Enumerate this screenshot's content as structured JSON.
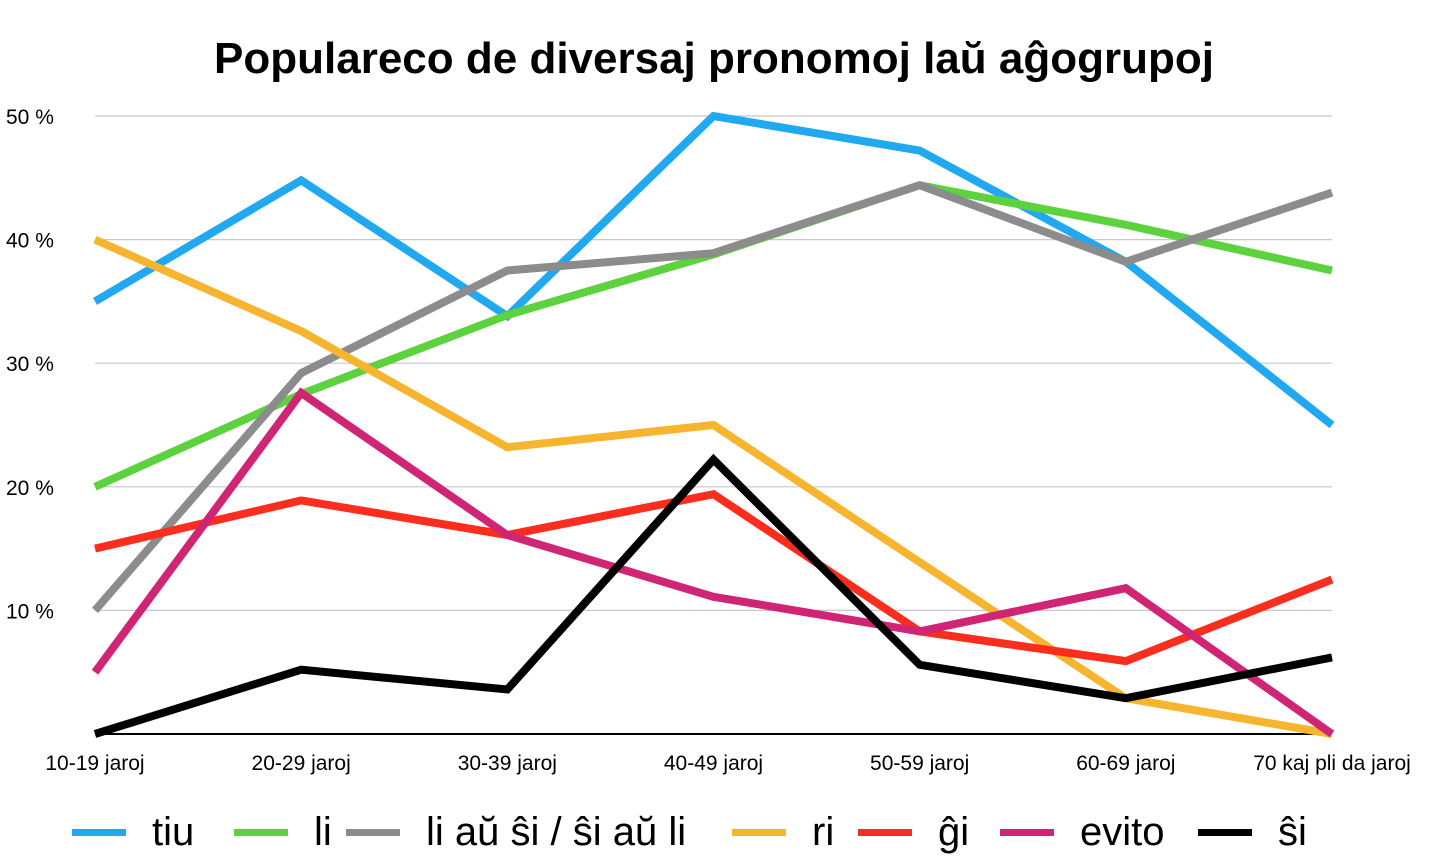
{
  "chart_data": {
    "type": "line",
    "title": "Populareco de diversaj pronomoj laŭ aĝogrupoj",
    "xlabel": "",
    "ylabel": "",
    "ylim": [
      0,
      50
    ],
    "y_ticks": [
      10,
      20,
      30,
      40,
      50
    ],
    "y_tick_labels": [
      "10 %",
      "20 %",
      "30 %",
      "40 %",
      "50 %"
    ],
    "grid": true,
    "legend_position": "bottom",
    "categories": [
      "10-19 jaroj",
      "20-29 jaroj",
      "30-39 jaroj",
      "40-49 jaroj",
      "50-59 jaroj",
      "60-69 jaroj",
      "70 kaj pli da jaroj"
    ],
    "series": [
      {
        "name": "tiu",
        "color": "#20A8F0",
        "values": [
          35,
          44.8,
          33.8,
          50,
          47.2,
          38.2,
          25
        ]
      },
      {
        "name": "li",
        "color": "#5CD23E",
        "values": [
          20,
          27.5,
          33.9,
          38.8,
          44.4,
          41.2,
          37.5
        ]
      },
      {
        "name": "li aŭ ŝi / ŝi aŭ li",
        "color": "#8C8C8C",
        "values": [
          10,
          29.2,
          37.5,
          38.9,
          44.4,
          38.2,
          43.8
        ]
      },
      {
        "name": "ri",
        "color": "#F7B52F",
        "values": [
          40,
          32.6,
          23.2,
          25,
          13.9,
          2.9,
          0
        ]
      },
      {
        "name": "ĝi",
        "color": "#FB2D1E",
        "values": [
          15,
          18.9,
          16.1,
          19.4,
          8.3,
          5.9,
          12.5
        ]
      },
      {
        "name": "evito",
        "color": "#D02475",
        "values": [
          5,
          27.6,
          16.1,
          11.1,
          8.3,
          11.8,
          0
        ]
      },
      {
        "name": "ŝi",
        "color": "#000000",
        "values": [
          0,
          5.2,
          3.6,
          22.2,
          5.6,
          2.9,
          6.2
        ]
      }
    ]
  }
}
